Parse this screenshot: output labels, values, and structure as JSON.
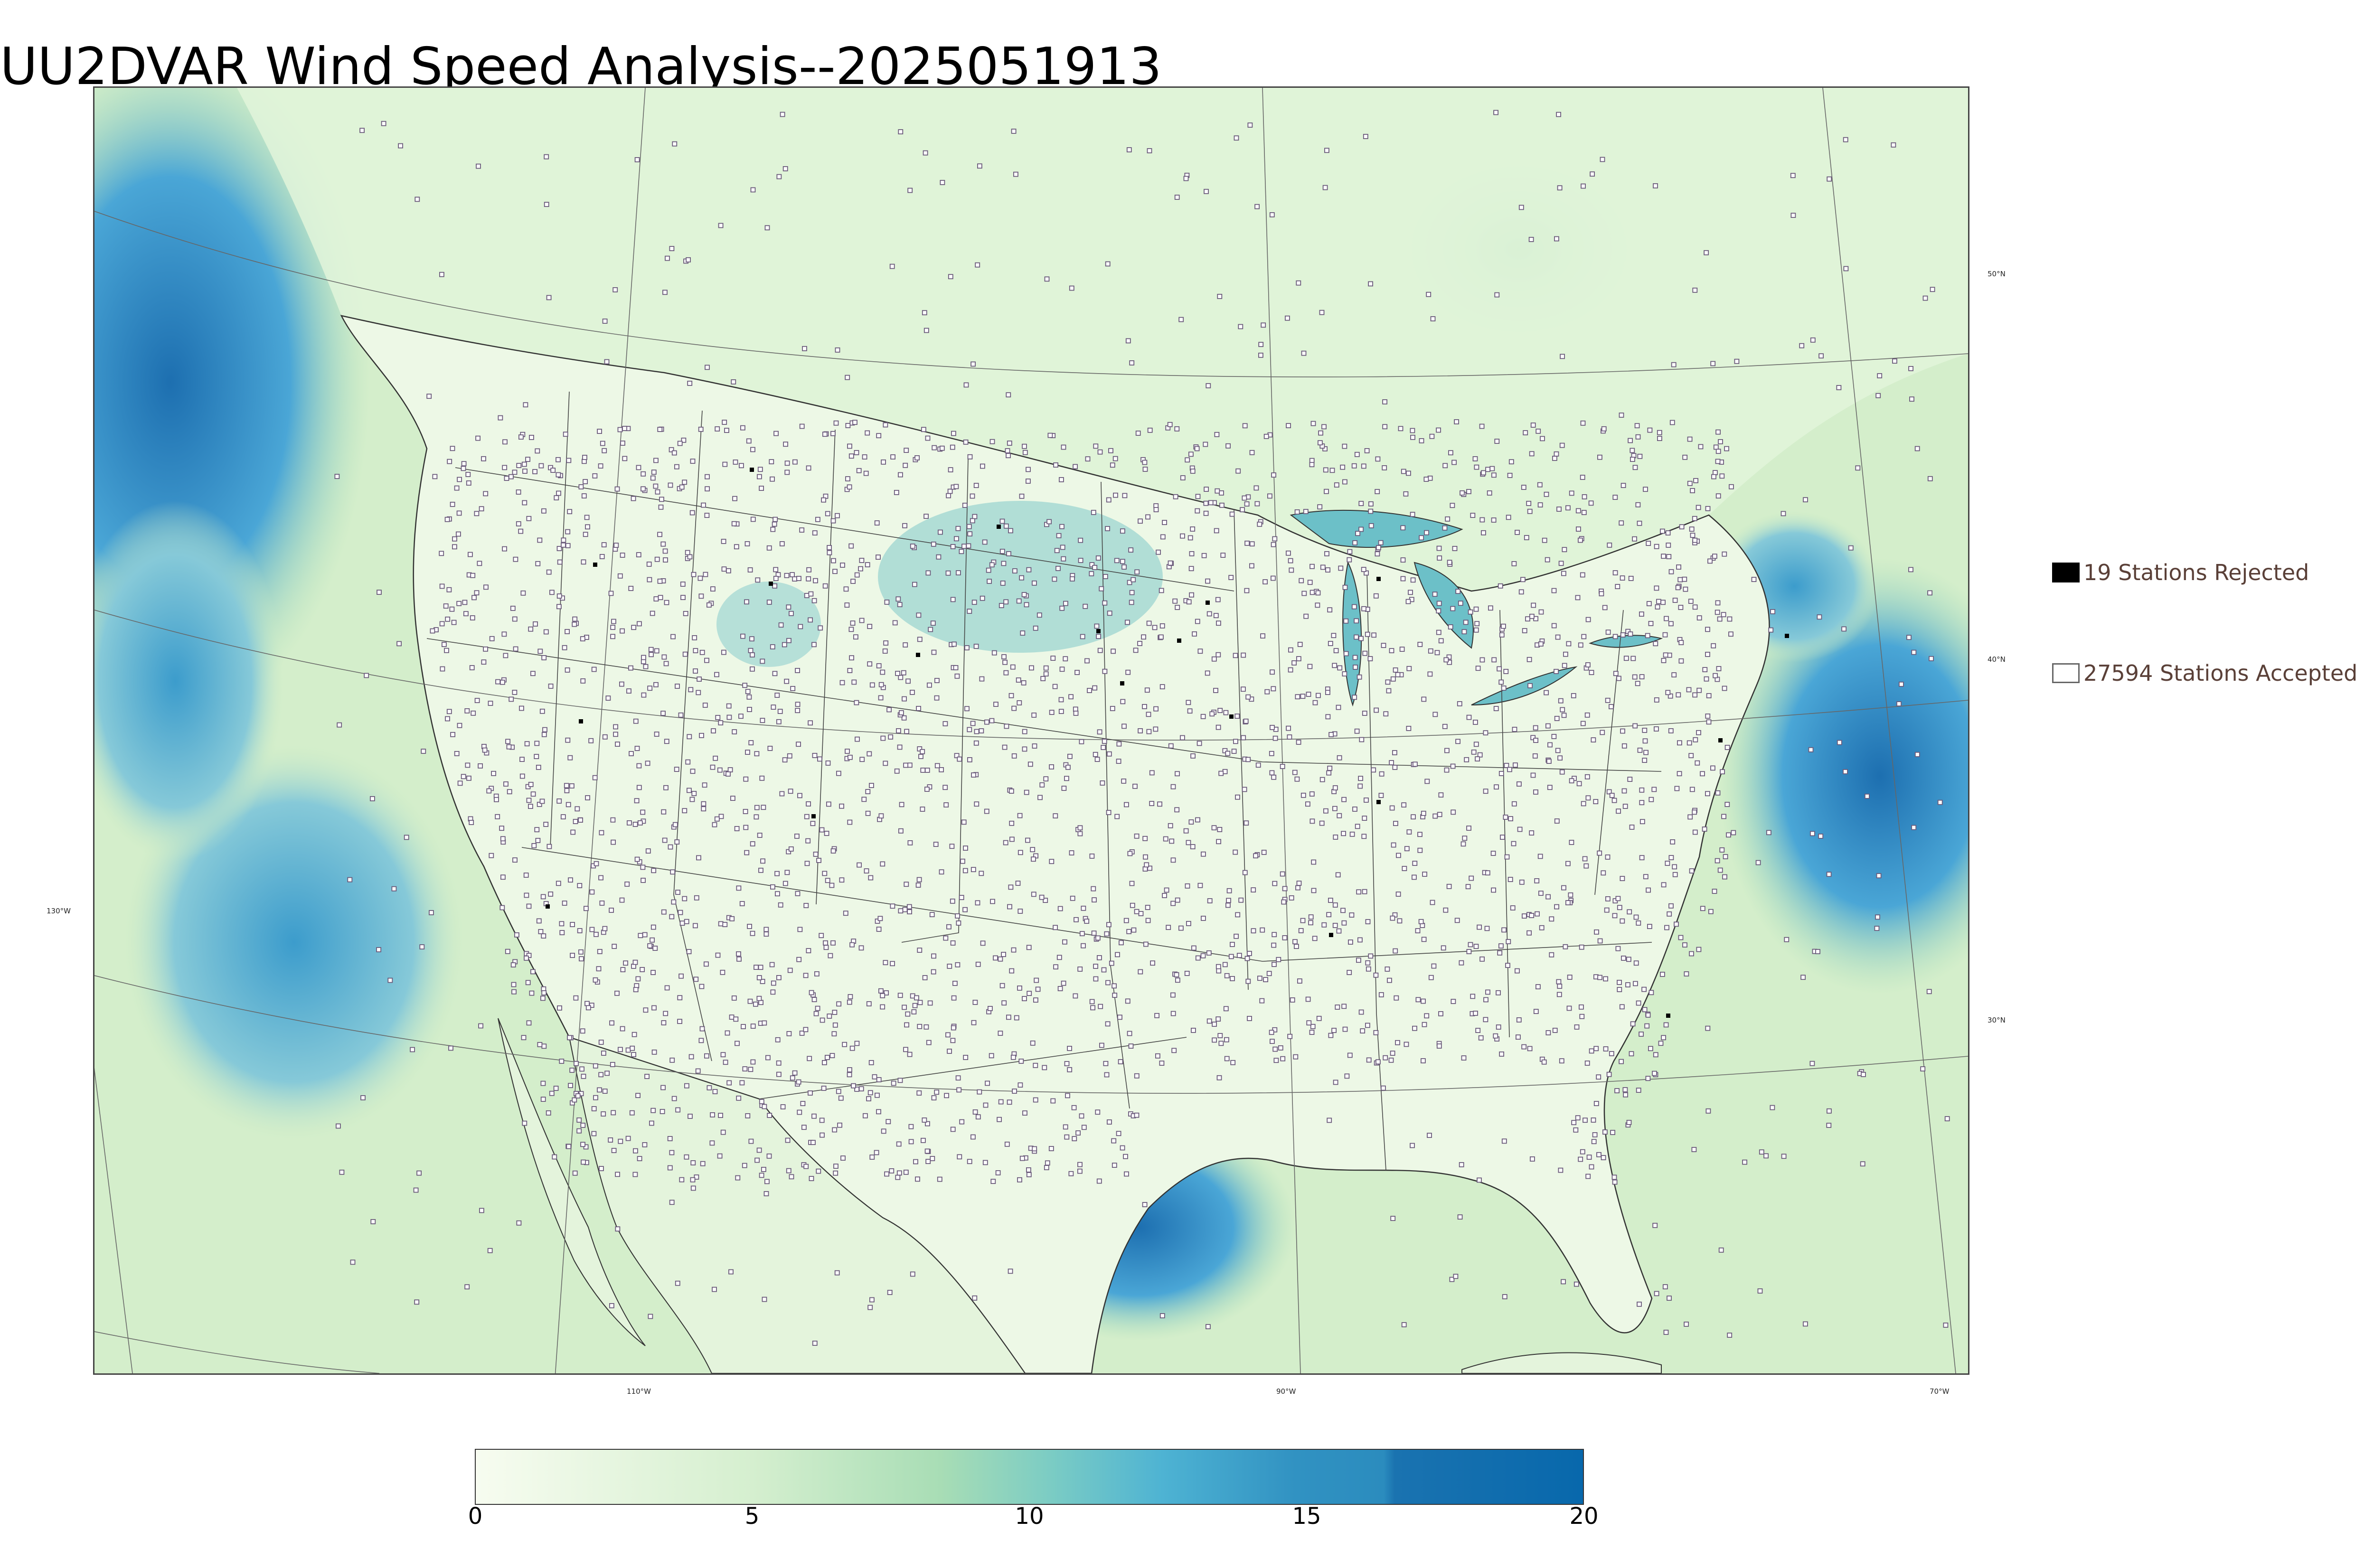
{
  "title": "UU2DVAR Wind Speed Analysis--2025051913",
  "longitude_labels": [
    "130°W",
    "110°W",
    "90°W",
    "70°W"
  ],
  "latitude_labels": [
    "50°N",
    "40°N",
    "30°N"
  ],
  "legend": {
    "rejected": "19 Stations Rejected",
    "accepted": "27594 Stations Accepted"
  },
  "colorbar": {
    "min": 0,
    "max": 20,
    "tick_labels": [
      "0",
      "5",
      "10",
      "15",
      "20"
    ],
    "colors": [
      "#f7fcf0",
      "#e0f3db",
      "#ccebc5",
      "#a8ddb5",
      "#7bccc4",
      "#4eb3d3",
      "#2b8cbe",
      "#0868ac"
    ],
    "boundaries": [
      0,
      2,
      4,
      6,
      8,
      11,
      15,
      17,
      20
    ]
  },
  "colors": {
    "ocean_high": "#2b8cbe",
    "land_low": "#eef8e6",
    "station_accepted_edge": "#6a5a7a",
    "station_rejected": "#000000"
  }
}
